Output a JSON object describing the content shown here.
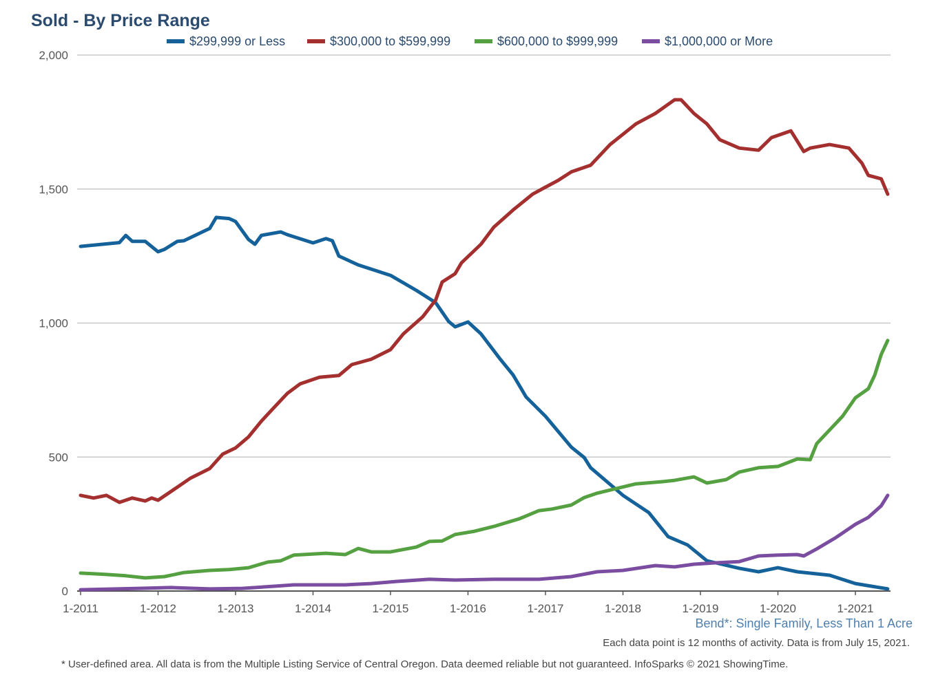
{
  "chart_data": {
    "type": "line",
    "title": "Sold - By Price Range",
    "subtitle": "Bend*: Single Family, Less Than 1 Acre",
    "note": "Each data point is 12 months of activity. Data is from July 15, 2021.",
    "footnote": "* User-defined area. All data is from the Multiple Listing Service of Central Oregon. Data deemed reliable but not guaranteed. InfoSparks © 2021 ShowingTime.",
    "x_unit": "months since 1-2011",
    "xlim": [
      0,
      125
    ],
    "ylim": [
      0,
      2000
    ],
    "grid": true,
    "legend_position": "top",
    "y_ticks": [
      {
        "value": 0,
        "label": "0"
      },
      {
        "value": 500,
        "label": "500"
      },
      {
        "value": 1000,
        "label": "1,000"
      },
      {
        "value": 1500,
        "label": "1,500"
      },
      {
        "value": 2000,
        "label": "2,000"
      }
    ],
    "x_ticks": [
      {
        "value": 0,
        "label": "1-2011"
      },
      {
        "value": 12,
        "label": "1-2012"
      },
      {
        "value": 24,
        "label": "1-2013"
      },
      {
        "value": 36,
        "label": "1-2014"
      },
      {
        "value": 48,
        "label": "1-2015"
      },
      {
        "value": 60,
        "label": "1-2016"
      },
      {
        "value": 72,
        "label": "1-2017"
      },
      {
        "value": 84,
        "label": "1-2018"
      },
      {
        "value": 96,
        "label": "1-2019"
      },
      {
        "value": 108,
        "label": "1-2020"
      },
      {
        "value": 120,
        "label": "1-2021"
      }
    ],
    "series": [
      {
        "name": "$299,999 or Less",
        "color": "#15629a",
        "x": [
          0,
          6,
          7,
          8,
          10,
          12,
          13,
          15,
          16,
          20,
          21,
          23,
          24,
          26,
          27,
          28,
          31,
          32,
          36,
          38,
          39,
          40,
          43,
          48,
          52,
          55,
          57,
          58,
          60,
          62,
          65,
          67,
          69,
          72,
          76,
          78,
          79,
          84,
          88,
          91,
          94,
          97,
          102,
          105,
          108,
          111,
          116,
          120,
          125
        ],
        "y": [
          1286,
          1300,
          1327,
          1305,
          1305,
          1266,
          1275,
          1305,
          1307,
          1353,
          1394,
          1390,
          1379,
          1312,
          1294,
          1327,
          1340,
          1330,
          1299,
          1315,
          1307,
          1250,
          1217,
          1178,
          1122,
          1076,
          1006,
          986,
          1004,
          960,
          865,
          806,
          724,
          652,
          537,
          498,
          460,
          357,
          293,
          203,
          172,
          113,
          85,
          72,
          87,
          72,
          59,
          28,
          8
        ]
      },
      {
        "name": "$300,000 to $599,999",
        "color": "#a3302f",
        "x": [
          0,
          2,
          4,
          6,
          8,
          10,
          11,
          12,
          15,
          17,
          20,
          22,
          24,
          26,
          28,
          30,
          32,
          34,
          37,
          40,
          42,
          45,
          48,
          50,
          53,
          55,
          56,
          58,
          59,
          62,
          64,
          67,
          70,
          72,
          74,
          76,
          79,
          82,
          86,
          89,
          92,
          93,
          95,
          97,
          99,
          102,
          105,
          107,
          110,
          112,
          113,
          116,
          119,
          121,
          122,
          124,
          125
        ],
        "y": [
          357,
          347,
          357,
          331,
          347,
          336,
          347,
          339,
          388,
          421,
          457,
          511,
          534,
          575,
          634,
          686,
          737,
          773,
          798,
          804,
          845,
          865,
          901,
          960,
          1024,
          1086,
          1153,
          1184,
          1225,
          1294,
          1358,
          1422,
          1481,
          1507,
          1533,
          1564,
          1589,
          1666,
          1743,
          1782,
          1833,
          1833,
          1782,
          1743,
          1684,
          1653,
          1645,
          1692,
          1717,
          1640,
          1653,
          1666,
          1653,
          1597,
          1551,
          1538,
          1481
        ]
      },
      {
        "name": "$600,000 to $999,999",
        "color": "#55a041",
        "x": [
          0,
          4,
          7,
          10,
          13,
          16,
          20,
          23,
          26,
          29,
          31,
          33,
          38,
          41,
          43,
          45,
          48,
          52,
          54,
          56,
          58,
          61,
          64,
          68,
          71,
          73,
          76,
          78,
          80,
          82,
          86,
          90,
          92,
          95,
          97,
          100,
          102,
          105,
          108,
          111,
          113,
          114,
          116,
          118,
          120,
          122,
          123,
          124,
          125
        ],
        "y": [
          67,
          62,
          57,
          49,
          54,
          69,
          77,
          80,
          87,
          108,
          113,
          134,
          141,
          136,
          159,
          146,
          146,
          164,
          185,
          187,
          211,
          223,
          241,
          270,
          300,
          306,
          321,
          349,
          365,
          377,
          400,
          408,
          413,
          426,
          403,
          416,
          444,
          460,
          465,
          493,
          490,
          550,
          601,
          652,
          721,
          755,
          806,
          883,
          935
        ]
      },
      {
        "name": "$1,000,000 or More",
        "color": "#7b4da0",
        "x": [
          0,
          9,
          14,
          20,
          25,
          30,
          33,
          41,
          45,
          49,
          54,
          58,
          64,
          71,
          76,
          80,
          84,
          89,
          92,
          95,
          98,
          102,
          105,
          108,
          111,
          112,
          114,
          117,
          120,
          122,
          124,
          125
        ],
        "y": [
          5,
          10,
          13,
          8,
          10,
          18,
          23,
          23,
          28,
          36,
          44,
          41,
          44,
          44,
          54,
          72,
          77,
          95,
          90,
          100,
          105,
          110,
          131,
          134,
          136,
          131,
          157,
          200,
          249,
          275,
          318,
          357
        ]
      }
    ]
  }
}
